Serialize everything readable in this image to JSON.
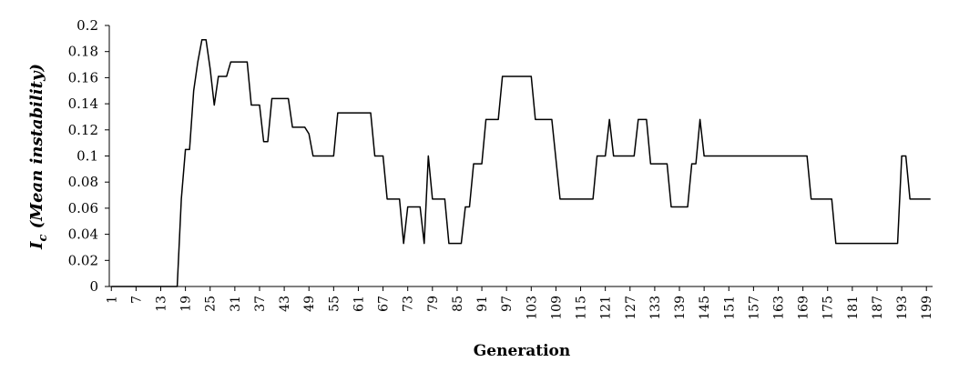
{
  "chart_data": {
    "type": "line",
    "title": "",
    "xlabel": "Generation",
    "ylabel": {
      "symbol": "I",
      "subscript": "c",
      "text": " (Mean instability)"
    },
    "ylim": [
      0,
      0.2
    ],
    "y_ticks": [
      "0",
      "0.02",
      "0.04",
      "0.06",
      "0.08",
      "0.1",
      "0.12",
      "0.14",
      "0.16",
      "0.18",
      "0.2"
    ],
    "x_range": [
      1,
      200
    ],
    "x_ticks": [
      "1",
      "7",
      "13",
      "19",
      "25",
      "31",
      "37",
      "43",
      "49",
      "55",
      "61",
      "67",
      "73",
      "79",
      "85",
      "91",
      "97",
      "103",
      "109",
      "115",
      "121",
      "127",
      "133",
      "139",
      "145",
      "151",
      "157",
      "163",
      "169",
      "175",
      "181",
      "187",
      "193",
      "199"
    ],
    "grid": false,
    "legend": "none",
    "series": [
      {
        "color": "#000000",
        "points": [
          [
            1,
            0
          ],
          [
            17,
            0
          ],
          [
            18,
            0.067
          ],
          [
            19,
            0.105
          ],
          [
            20,
            0.105
          ],
          [
            21,
            0.15
          ],
          [
            22,
            0.172
          ],
          [
            23,
            0.189
          ],
          [
            24,
            0.189
          ],
          [
            25,
            0.167
          ],
          [
            26,
            0.139
          ],
          [
            27,
            0.161
          ],
          [
            29,
            0.161
          ],
          [
            30,
            0.172
          ],
          [
            34,
            0.172
          ],
          [
            35,
            0.139
          ],
          [
            37,
            0.139
          ],
          [
            38,
            0.111
          ],
          [
            39,
            0.111
          ],
          [
            40,
            0.144
          ],
          [
            44,
            0.144
          ],
          [
            45,
            0.122
          ],
          [
            48,
            0.122
          ],
          [
            49,
            0.117
          ],
          [
            50,
            0.1
          ],
          [
            55,
            0.1
          ],
          [
            56,
            0.133
          ],
          [
            64,
            0.133
          ],
          [
            65,
            0.1
          ],
          [
            67,
            0.1
          ],
          [
            68,
            0.067
          ],
          [
            71,
            0.067
          ],
          [
            72,
            0.033
          ],
          [
            73,
            0.061
          ],
          [
            76,
            0.061
          ],
          [
            77,
            0.033
          ],
          [
            78,
            0.1
          ],
          [
            79,
            0.067
          ],
          [
            82,
            0.067
          ],
          [
            83,
            0.033
          ],
          [
            86,
            0.033
          ],
          [
            87,
            0.061
          ],
          [
            88,
            0.061
          ],
          [
            89,
            0.094
          ],
          [
            91,
            0.094
          ],
          [
            92,
            0.128
          ],
          [
            95,
            0.128
          ],
          [
            96,
            0.161
          ],
          [
            103,
            0.161
          ],
          [
            104,
            0.128
          ],
          [
            108,
            0.128
          ],
          [
            110,
            0.067
          ],
          [
            118,
            0.067
          ],
          [
            119,
            0.1
          ],
          [
            121,
            0.1
          ],
          [
            122,
            0.128
          ],
          [
            123,
            0.1
          ],
          [
            128,
            0.1
          ],
          [
            129,
            0.128
          ],
          [
            131,
            0.128
          ],
          [
            132,
            0.094
          ],
          [
            136,
            0.094
          ],
          [
            137,
            0.061
          ],
          [
            141,
            0.061
          ],
          [
            142,
            0.094
          ],
          [
            143,
            0.094
          ],
          [
            144,
            0.128
          ],
          [
            145,
            0.1
          ],
          [
            170,
            0.1
          ],
          [
            171,
            0.067
          ],
          [
            176,
            0.067
          ],
          [
            177,
            0.033
          ],
          [
            192,
            0.033
          ],
          [
            193,
            0.1
          ],
          [
            194,
            0.1
          ],
          [
            195,
            0.067
          ],
          [
            200,
            0.067
          ]
        ]
      }
    ]
  }
}
